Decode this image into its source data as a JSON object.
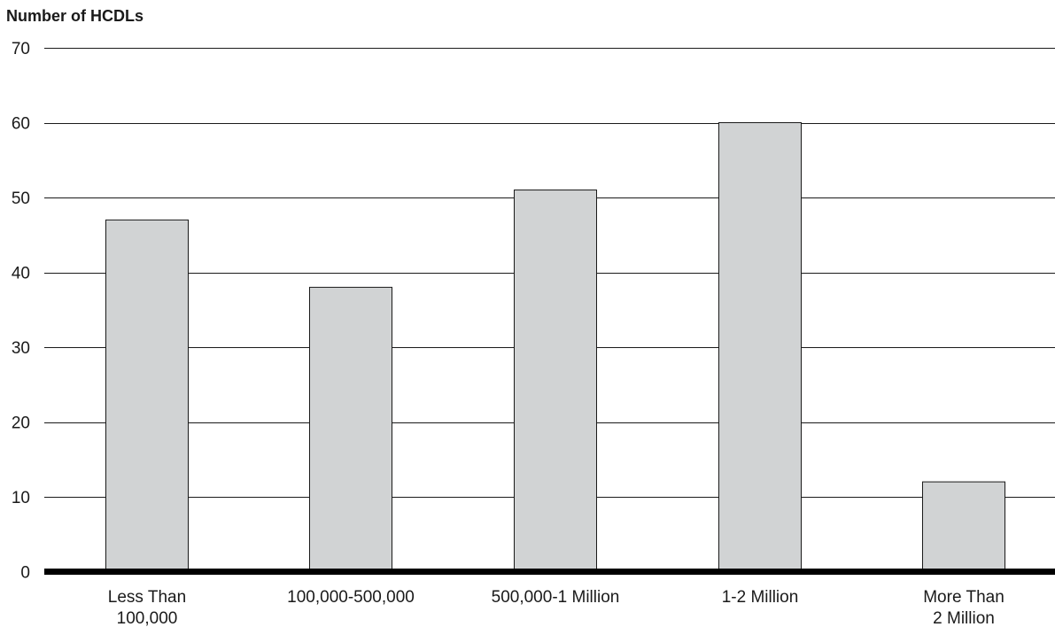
{
  "chart_data": {
    "type": "bar",
    "title": "",
    "ylabel": "Number of HCDLs",
    "xlabel": "",
    "ylim": [
      0,
      70
    ],
    "yticks": [
      0,
      10,
      20,
      30,
      40,
      50,
      60,
      70
    ],
    "grid": true,
    "categories": [
      [
        "Less Than",
        "100,000"
      ],
      [
        "100,000-500,000"
      ],
      [
        "500,000-1 Million"
      ],
      [
        "1-2 Million"
      ],
      [
        "More Than",
        "2 Million"
      ]
    ],
    "values": [
      47,
      38,
      51,
      60,
      12
    ],
    "colors": {
      "bar": "#d1d3d4",
      "outline": "#1a1a1a",
      "baseline": "#000000"
    }
  }
}
